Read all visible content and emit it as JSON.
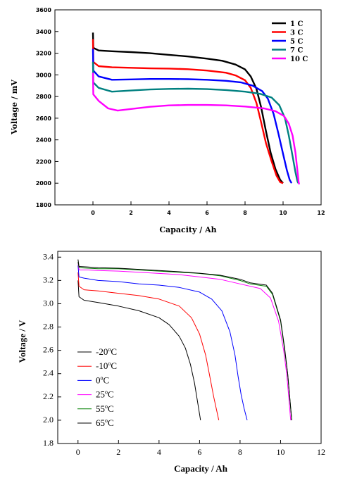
{
  "chart_data": [
    {
      "type": "line",
      "xlabel": "Capacity / Ah",
      "ylabel": "Voltage / mV",
      "xlim": [
        -2,
        12
      ],
      "ylim": [
        1800,
        3600
      ],
      "xticks": [
        0,
        2,
        4,
        6,
        8,
        10,
        12
      ],
      "yticks": [
        1800,
        2000,
        2200,
        2400,
        2600,
        2800,
        3000,
        3200,
        3400,
        3600
      ],
      "grid": false,
      "legend_position": "top-right",
      "series": [
        {
          "name": "1 C",
          "color": "#000000",
          "points": [
            [
              0,
              3390
            ],
            [
              0.02,
              3250
            ],
            [
              0.3,
              3225
            ],
            [
              1,
              3218
            ],
            [
              2,
              3210
            ],
            [
              3,
              3200
            ],
            [
              4,
              3185
            ],
            [
              5,
              3170
            ],
            [
              6,
              3150
            ],
            [
              6.8,
              3130
            ],
            [
              7.5,
              3095
            ],
            [
              8.0,
              3050
            ],
            [
              8.3,
              2985
            ],
            [
              8.6,
              2870
            ],
            [
              8.85,
              2700
            ],
            [
              9.1,
              2480
            ],
            [
              9.35,
              2280
            ],
            [
              9.6,
              2130
            ],
            [
              9.85,
              2030
            ],
            [
              10.0,
              2000
            ]
          ]
        },
        {
          "name": "3 C",
          "color": "#ff0000",
          "points": [
            [
              0,
              3330
            ],
            [
              0.02,
              3120
            ],
            [
              0.3,
              3080
            ],
            [
              1,
              3070
            ],
            [
              2,
              3065
            ],
            [
              3,
              3060
            ],
            [
              4,
              3058
            ],
            [
              5,
              3052
            ],
            [
              6,
              3040
            ],
            [
              7,
              3020
            ],
            [
              7.5,
              2995
            ],
            [
              8,
              2950
            ],
            [
              8.3,
              2880
            ],
            [
              8.6,
              2740
            ],
            [
              8.85,
              2560
            ],
            [
              9.1,
              2370
            ],
            [
              9.4,
              2200
            ],
            [
              9.65,
              2070
            ],
            [
              9.85,
              2010
            ],
            [
              10.0,
              2000
            ]
          ]
        },
        {
          "name": "5 C",
          "color": "#0000ff",
          "points": [
            [
              0,
              3240
            ],
            [
              0.02,
              3040
            ],
            [
              0.3,
              2985
            ],
            [
              1,
              2955
            ],
            [
              2,
              2958
            ],
            [
              3,
              2962
            ],
            [
              4,
              2962
            ],
            [
              5,
              2960
            ],
            [
              6,
              2955
            ],
            [
              7,
              2945
            ],
            [
              7.8,
              2930
            ],
            [
              8.4,
              2900
            ],
            [
              8.9,
              2850
            ],
            [
              9.2,
              2780
            ],
            [
              9.5,
              2640
            ],
            [
              9.75,
              2460
            ],
            [
              10.0,
              2270
            ],
            [
              10.2,
              2120
            ],
            [
              10.35,
              2030
            ],
            [
              10.45,
              2000
            ]
          ]
        },
        {
          "name": "7 C",
          "color": "#008080",
          "points": [
            [
              0,
              3120
            ],
            [
              0.02,
              2930
            ],
            [
              0.3,
              2880
            ],
            [
              1,
              2845
            ],
            [
              2,
              2855
            ],
            [
              3,
              2865
            ],
            [
              4,
              2870
            ],
            [
              5,
              2872
            ],
            [
              6,
              2868
            ],
            [
              7,
              2860
            ],
            [
              8,
              2845
            ],
            [
              8.8,
              2825
            ],
            [
              9.4,
              2790
            ],
            [
              9.8,
              2720
            ],
            [
              10.1,
              2600
            ],
            [
              10.3,
              2440
            ],
            [
              10.5,
              2250
            ],
            [
              10.65,
              2100
            ],
            [
              10.75,
              2020
            ],
            [
              10.8,
              2000
            ]
          ]
        },
        {
          "name": "10 C",
          "color": "#ff00ff",
          "points": [
            [
              0,
              3020
            ],
            [
              0.02,
              2820
            ],
            [
              0.3,
              2760
            ],
            [
              0.8,
              2690
            ],
            [
              1.3,
              2670
            ],
            [
              2,
              2685
            ],
            [
              3,
              2705
            ],
            [
              4,
              2718
            ],
            [
              5,
              2722
            ],
            [
              6,
              2722
            ],
            [
              7,
              2718
            ],
            [
              8,
              2708
            ],
            [
              9,
              2690
            ],
            [
              9.6,
              2665
            ],
            [
              10.05,
              2620
            ],
            [
              10.3,
              2550
            ],
            [
              10.5,
              2440
            ],
            [
              10.65,
              2280
            ],
            [
              10.75,
              2120
            ],
            [
              10.82,
              2010
            ],
            [
              10.85,
              1990
            ]
          ]
        }
      ]
    },
    {
      "type": "line",
      "xlabel": "Capacity / Ah",
      "ylabel": "Voltage / V",
      "xlim": [
        -1,
        12
      ],
      "ylim": [
        1.8,
        3.45
      ],
      "xticks": [
        0,
        2,
        4,
        6,
        8,
        10,
        12
      ],
      "yticks": [
        1.8,
        2.0,
        2.2,
        2.4,
        2.6,
        2.8,
        3.0,
        3.2,
        3.4
      ],
      "grid": false,
      "legend_position": "bottom-left",
      "series": [
        {
          "name": "-20",
          "unit": "C",
          "color": "#000000",
          "points": [
            [
              0,
              3.2
            ],
            [
              0.05,
              3.06
            ],
            [
              0.3,
              3.03
            ],
            [
              1,
              3.01
            ],
            [
              2,
              2.98
            ],
            [
              3,
              2.94
            ],
            [
              4,
              2.88
            ],
            [
              4.5,
              2.82
            ],
            [
              5,
              2.72
            ],
            [
              5.3,
              2.62
            ],
            [
              5.55,
              2.48
            ],
            [
              5.75,
              2.32
            ],
            [
              5.9,
              2.16
            ],
            [
              6.05,
              2.0
            ]
          ]
        },
        {
          "name": "-10",
          "unit": "C",
          "color": "#ff0000",
          "points": [
            [
              0,
              3.27
            ],
            [
              0.05,
              3.15
            ],
            [
              0.3,
              3.12
            ],
            [
              1,
              3.11
            ],
            [
              2,
              3.09
            ],
            [
              3,
              3.07
            ],
            [
              4,
              3.04
            ],
            [
              5,
              2.98
            ],
            [
              5.6,
              2.88
            ],
            [
              6.0,
              2.74
            ],
            [
              6.3,
              2.56
            ],
            [
              6.5,
              2.38
            ],
            [
              6.7,
              2.2
            ],
            [
              6.95,
              2.0
            ]
          ]
        },
        {
          "name": "0",
          "unit": "C",
          "color": "#0000ff",
          "points": [
            [
              0,
              3.33
            ],
            [
              0.05,
              3.23
            ],
            [
              0.3,
              3.22
            ],
            [
              1,
              3.2
            ],
            [
              2,
              3.19
            ],
            [
              3,
              3.17
            ],
            [
              4,
              3.16
            ],
            [
              5,
              3.14
            ],
            [
              6,
              3.1
            ],
            [
              6.6,
              3.04
            ],
            [
              7.1,
              2.94
            ],
            [
              7.5,
              2.76
            ],
            [
              7.75,
              2.56
            ],
            [
              7.9,
              2.38
            ],
            [
              8.05,
              2.22
            ],
            [
              8.2,
              2.1
            ],
            [
              8.35,
              2.0
            ]
          ]
        },
        {
          "name": "25",
          "unit": "C",
          "color": "#ff00ff",
          "points": [
            [
              0,
              3.35
            ],
            [
              0.05,
              3.29
            ],
            [
              0.5,
              3.29
            ],
            [
              1,
              3.285
            ],
            [
              2,
              3.28
            ],
            [
              3,
              3.27
            ],
            [
              4,
              3.26
            ],
            [
              5,
              3.25
            ],
            [
              6,
              3.23
            ],
            [
              7,
              3.21
            ],
            [
              8,
              3.17
            ],
            [
              9,
              3.13
            ],
            [
              9.5,
              3.05
            ],
            [
              9.9,
              2.85
            ],
            [
              10.15,
              2.6
            ],
            [
              10.3,
              2.4
            ],
            [
              10.4,
              2.2
            ],
            [
              10.5,
              2.0
            ]
          ]
        },
        {
          "name": "55",
          "unit": "C",
          "color": "#008000",
          "points": [
            [
              0,
              3.36
            ],
            [
              0.05,
              3.31
            ],
            [
              0.5,
              3.305
            ],
            [
              1,
              3.3
            ],
            [
              2,
              3.3
            ],
            [
              3,
              3.29
            ],
            [
              4,
              3.28
            ],
            [
              5,
              3.27
            ],
            [
              6,
              3.26
            ],
            [
              7,
              3.24
            ],
            [
              8,
              3.2
            ],
            [
              8.5,
              3.17
            ],
            [
              9.3,
              3.15
            ],
            [
              9.6,
              3.08
            ],
            [
              10.0,
              2.85
            ],
            [
              10.2,
              2.6
            ],
            [
              10.35,
              2.4
            ],
            [
              10.45,
              2.2
            ],
            [
              10.55,
              2.0
            ]
          ]
        },
        {
          "name": "65",
          "unit": "C",
          "color": "#000000",
          "points": [
            [
              0,
              3.38
            ],
            [
              0.05,
              3.32
            ],
            [
              0.5,
              3.315
            ],
            [
              1,
              3.31
            ],
            [
              2,
              3.305
            ],
            [
              3,
              3.295
            ],
            [
              4,
              3.285
            ],
            [
              5,
              3.275
            ],
            [
              6,
              3.262
            ],
            [
              7,
              3.245
            ],
            [
              8,
              3.21
            ],
            [
              8.5,
              3.18
            ],
            [
              9.3,
              3.16
            ],
            [
              9.6,
              3.09
            ],
            [
              10.0,
              2.86
            ],
            [
              10.2,
              2.62
            ],
            [
              10.35,
              2.4
            ],
            [
              10.45,
              2.2
            ],
            [
              10.55,
              2.0
            ]
          ]
        }
      ]
    }
  ]
}
